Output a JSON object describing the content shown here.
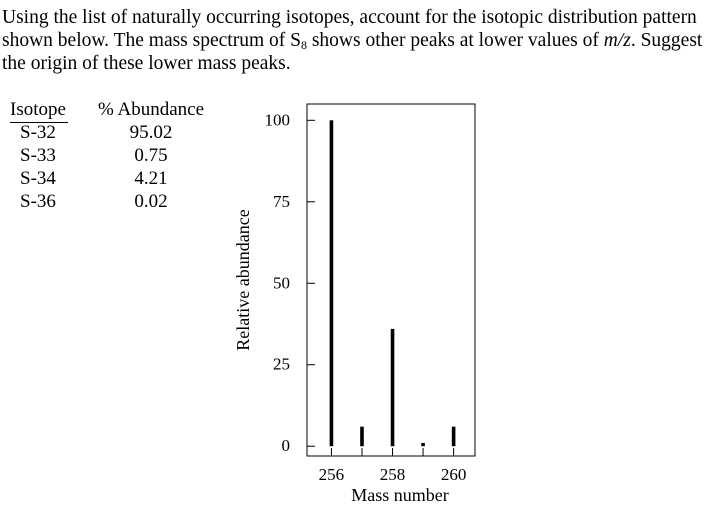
{
  "question": {
    "part1": "Using the list of naturally occurring isotopes, account for the isotopic distribution pattern shown below. The mass spectrum of S",
    "sub": "8",
    "part2": " shows other peaks at lower values of ",
    "mz": "m/z",
    "part3": ". Suggest the origin of these lower mass peaks."
  },
  "table": {
    "headers": [
      "Isotope",
      "% Abundance"
    ],
    "rows": [
      [
        "S-32",
        "95.02"
      ],
      [
        "S-33",
        "0.75"
      ],
      [
        "S-34",
        "4.21"
      ],
      [
        "S-36",
        "0.02"
      ]
    ]
  },
  "chart_data": {
    "type": "bar",
    "x": [
      256,
      257,
      258,
      259,
      260
    ],
    "values": [
      100,
      6,
      36,
      1,
      6
    ],
    "xticks": [
      256,
      257,
      258,
      259,
      260
    ],
    "xtick_labels": [
      "256",
      "",
      "258",
      "",
      "260"
    ],
    "yticks": [
      0,
      25,
      50,
      75,
      100
    ],
    "ytick_labels": [
      "0",
      "25",
      "50",
      "75",
      "100"
    ],
    "xlim": [
      255.2,
      260.7
    ],
    "ylim": [
      -3,
      105
    ],
    "xlabel": "Mass number",
    "ylabel": "Relative abundance",
    "title": ""
  }
}
